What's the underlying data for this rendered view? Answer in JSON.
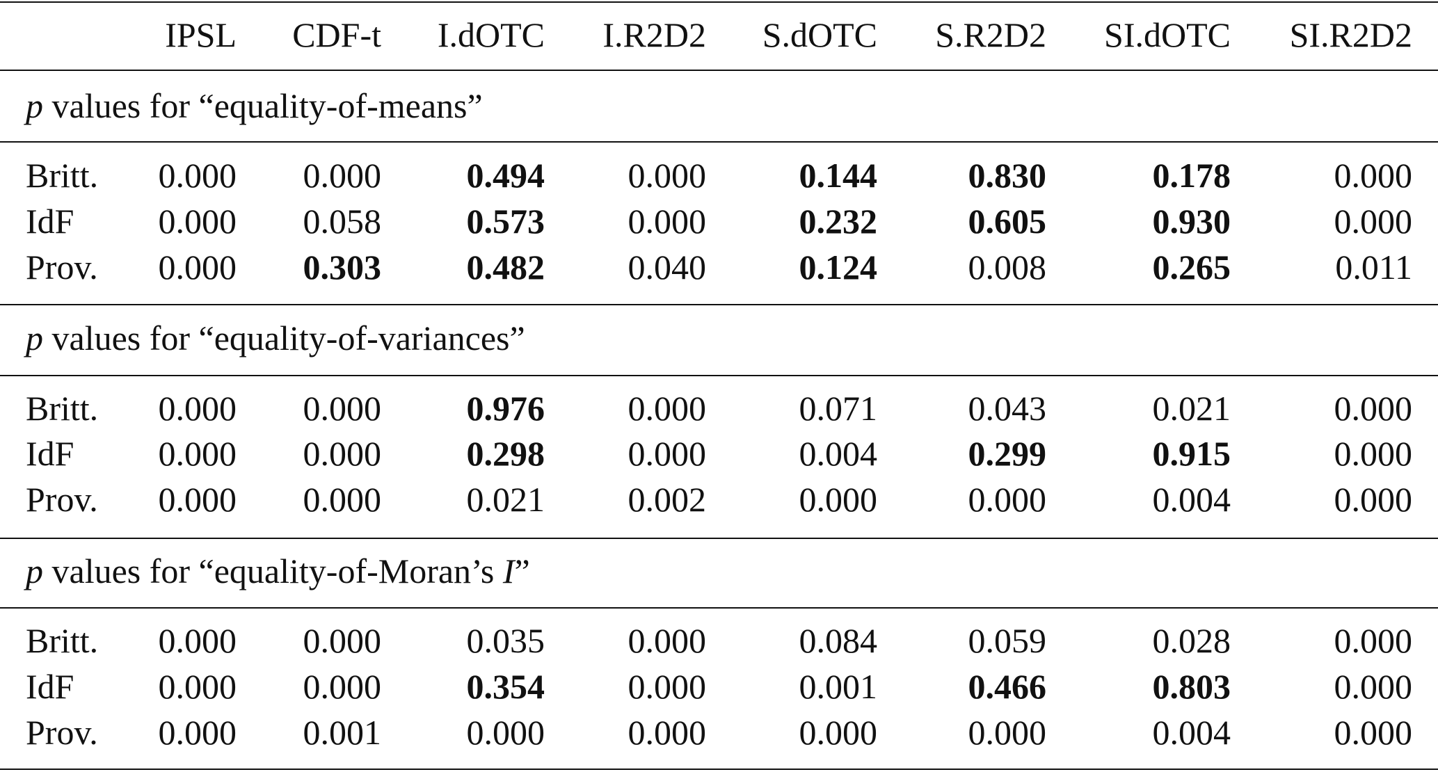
{
  "table": {
    "columns": [
      "IPSL",
      "CDF-t",
      "I.dOTC",
      "I.R2D2",
      "S.dOTC",
      "S.R2D2",
      "SI.dOTC",
      "SI.R2D2"
    ],
    "sections": [
      {
        "title": [
          {
            "text": "p",
            "italic": true
          },
          {
            "text": " values for “equality-of-means”",
            "italic": false
          }
        ],
        "rows": [
          {
            "label": "Britt.",
            "cells": [
              {
                "text": "0.000",
                "bold": false
              },
              {
                "text": "0.000",
                "bold": false
              },
              {
                "text": "0.494",
                "bold": true
              },
              {
                "text": "0.000",
                "bold": false
              },
              {
                "text": "0.144",
                "bold": true
              },
              {
                "text": "0.830",
                "bold": true
              },
              {
                "text": "0.178",
                "bold": true
              },
              {
                "text": "0.000",
                "bold": false
              }
            ]
          },
          {
            "label": "IdF",
            "cells": [
              {
                "text": "0.000",
                "bold": false
              },
              {
                "text": "0.058",
                "bold": false
              },
              {
                "text": "0.573",
                "bold": true
              },
              {
                "text": "0.000",
                "bold": false
              },
              {
                "text": "0.232",
                "bold": true
              },
              {
                "text": "0.605",
                "bold": true
              },
              {
                "text": "0.930",
                "bold": true
              },
              {
                "text": "0.000",
                "bold": false
              }
            ]
          },
          {
            "label": "Prov.",
            "cells": [
              {
                "text": "0.000",
                "bold": false
              },
              {
                "text": "0.303",
                "bold": true
              },
              {
                "text": "0.482",
                "bold": true
              },
              {
                "text": "0.040",
                "bold": false
              },
              {
                "text": "0.124",
                "bold": true
              },
              {
                "text": "0.008",
                "bold": false
              },
              {
                "text": "0.265",
                "bold": true
              },
              {
                "text": "0.011",
                "bold": false
              }
            ]
          }
        ]
      },
      {
        "title": [
          {
            "text": "p",
            "italic": true
          },
          {
            "text": " values for “equality-of-variances”",
            "italic": false
          }
        ],
        "rows": [
          {
            "label": "Britt.",
            "cells": [
              {
                "text": "0.000",
                "bold": false
              },
              {
                "text": "0.000",
                "bold": false
              },
              {
                "text": "0.976",
                "bold": true
              },
              {
                "text": "0.000",
                "bold": false
              },
              {
                "text": "0.071",
                "bold": false
              },
              {
                "text": "0.043",
                "bold": false
              },
              {
                "text": "0.021",
                "bold": false
              },
              {
                "text": "0.000",
                "bold": false
              }
            ]
          },
          {
            "label": "IdF",
            "cells": [
              {
                "text": "0.000",
                "bold": false
              },
              {
                "text": "0.000",
                "bold": false
              },
              {
                "text": "0.298",
                "bold": true
              },
              {
                "text": "0.000",
                "bold": false
              },
              {
                "text": "0.004",
                "bold": false
              },
              {
                "text": "0.299",
                "bold": true
              },
              {
                "text": "0.915",
                "bold": true
              },
              {
                "text": "0.000",
                "bold": false
              }
            ]
          },
          {
            "label": "Prov.",
            "cells": [
              {
                "text": "0.000",
                "bold": false
              },
              {
                "text": "0.000",
                "bold": false
              },
              {
                "text": "0.021",
                "bold": false
              },
              {
                "text": "0.002",
                "bold": false
              },
              {
                "text": "0.000",
                "bold": false
              },
              {
                "text": "0.000",
                "bold": false
              },
              {
                "text": "0.004",
                "bold": false
              },
              {
                "text": "0.000",
                "bold": false
              }
            ]
          }
        ]
      },
      {
        "title": [
          {
            "text": "p",
            "italic": true
          },
          {
            "text": " values for “equality-of-Moran’s ",
            "italic": false
          },
          {
            "text": "I",
            "italic": true
          },
          {
            "text": "”",
            "italic": false
          }
        ],
        "rows": [
          {
            "label": "Britt.",
            "cells": [
              {
                "text": "0.000",
                "bold": false
              },
              {
                "text": "0.000",
                "bold": false
              },
              {
                "text": "0.035",
                "bold": false
              },
              {
                "text": "0.000",
                "bold": false
              },
              {
                "text": "0.084",
                "bold": false
              },
              {
                "text": "0.059",
                "bold": false
              },
              {
                "text": "0.028",
                "bold": false
              },
              {
                "text": "0.000",
                "bold": false
              }
            ]
          },
          {
            "label": "IdF",
            "cells": [
              {
                "text": "0.000",
                "bold": false
              },
              {
                "text": "0.000",
                "bold": false
              },
              {
                "text": "0.354",
                "bold": true
              },
              {
                "text": "0.000",
                "bold": false
              },
              {
                "text": "0.001",
                "bold": false
              },
              {
                "text": "0.466",
                "bold": true
              },
              {
                "text": "0.803",
                "bold": true
              },
              {
                "text": "0.000",
                "bold": false
              }
            ]
          },
          {
            "label": "Prov.",
            "cells": [
              {
                "text": "0.000",
                "bold": false
              },
              {
                "text": "0.001",
                "bold": false
              },
              {
                "text": "0.000",
                "bold": false
              },
              {
                "text": "0.000",
                "bold": false
              },
              {
                "text": "0.000",
                "bold": false
              },
              {
                "text": "0.000",
                "bold": false
              },
              {
                "text": "0.004",
                "bold": false
              },
              {
                "text": "0.000",
                "bold": false
              }
            ]
          }
        ]
      }
    ]
  }
}
